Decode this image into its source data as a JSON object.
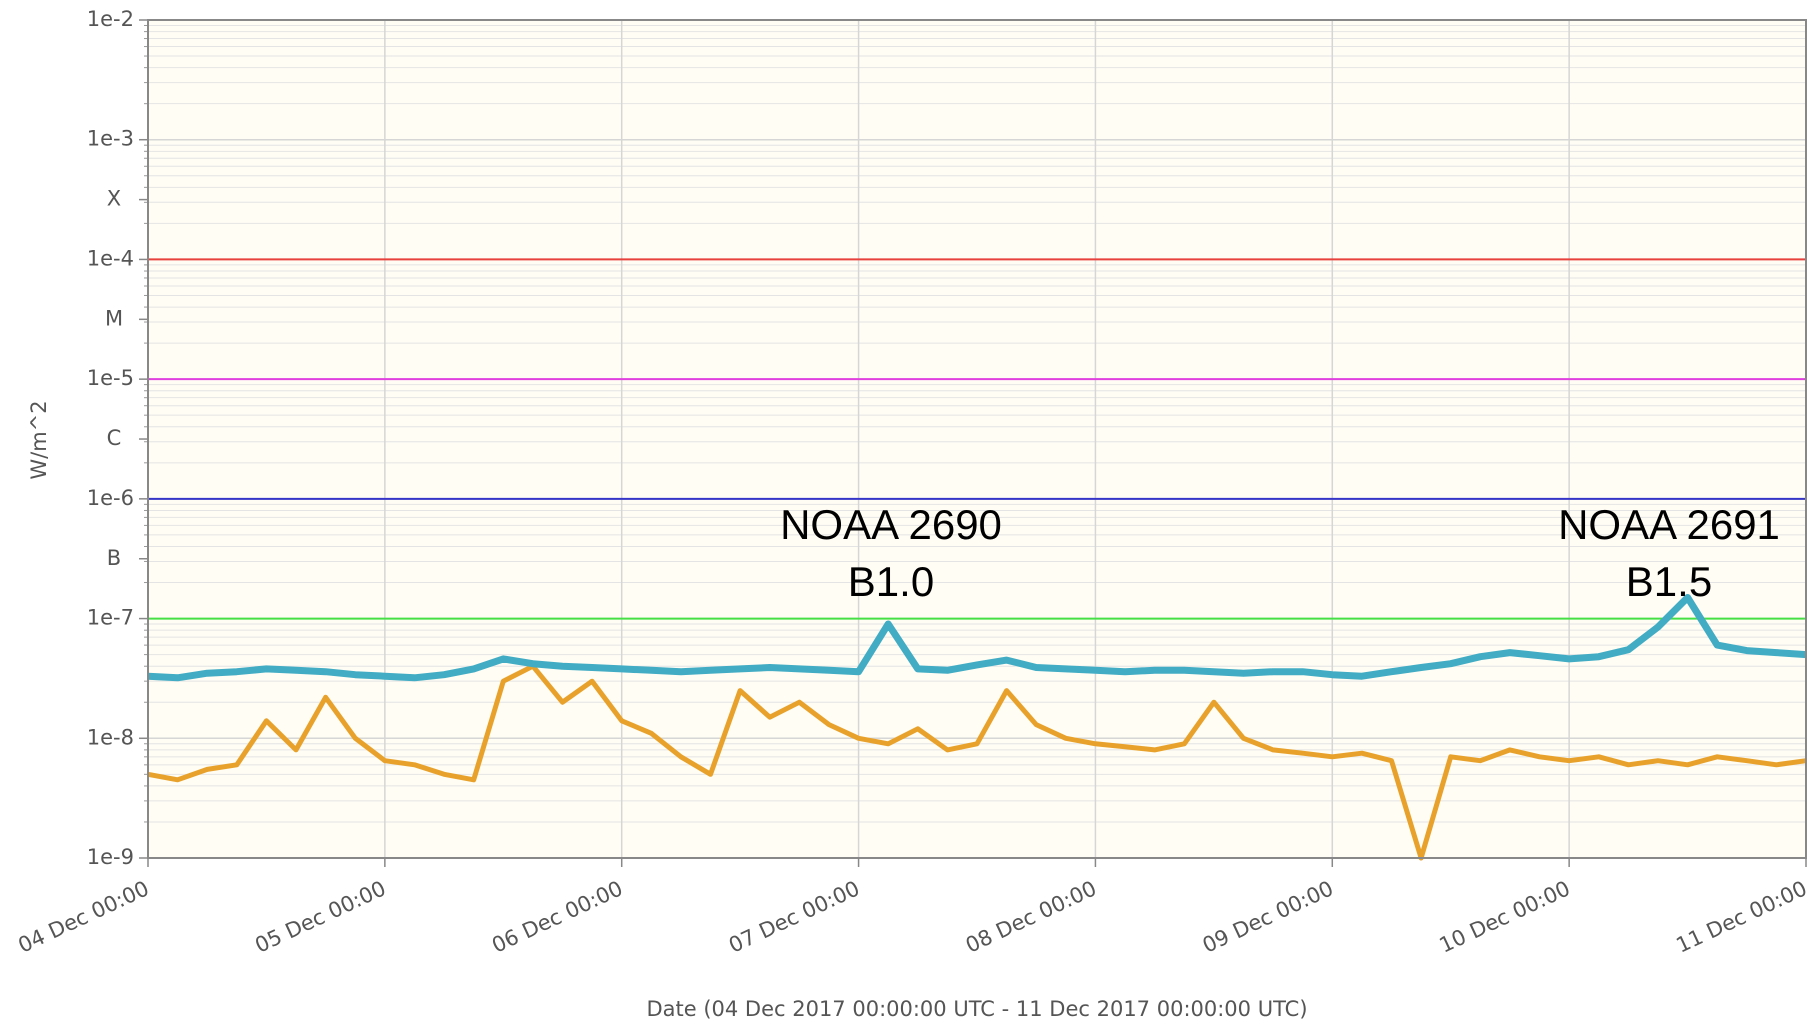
{
  "chart_data": {
    "type": "line",
    "y_label": "W/m^2",
    "x_label": "Date (04 Dec 2017 00:00:00 UTC - 11 Dec 2017 00:00:00 UTC)",
    "log_y": true,
    "grid": true,
    "ylim": [
      1e-09,
      0.01
    ],
    "yticks": [
      {
        "value": 1e-09,
        "label": "1e-9"
      },
      {
        "value": 1e-08,
        "label": "1e-8"
      },
      {
        "value": 1e-07,
        "label": "1e-7"
      },
      {
        "value": 1e-06,
        "label": "1e-6"
      },
      {
        "value": 1e-05,
        "label": "1e-5"
      },
      {
        "value": 0.0001,
        "label": "1e-4"
      },
      {
        "value": 0.001,
        "label": "1e-3"
      },
      {
        "value": 0.01,
        "label": "1e-2"
      }
    ],
    "class_ticks": [
      {
        "value": 3.16e-07,
        "label": "B"
      },
      {
        "value": 3.16e-06,
        "label": "C"
      },
      {
        "value": 3.16e-05,
        "label": "M"
      },
      {
        "value": 0.000316,
        "label": "X"
      }
    ],
    "thresholds": [
      {
        "value": 0.0001,
        "color": "#e8413c"
      },
      {
        "value": 1e-05,
        "color": "#e040e0"
      },
      {
        "value": 1e-06,
        "color": "#3535c8"
      },
      {
        "value": 1e-07,
        "color": "#44e044"
      }
    ],
    "xlim": [
      "2017-12-04 00:00",
      "2017-12-11 00:00"
    ],
    "xticks": [
      {
        "value": "2017-12-04 00:00",
        "label": "04 Dec 00:00"
      },
      {
        "value": "2017-12-05 00:00",
        "label": "05 Dec 00:00"
      },
      {
        "value": "2017-12-06 00:00",
        "label": "06 Dec 00:00"
      },
      {
        "value": "2017-12-07 00:00",
        "label": "07 Dec 00:00"
      },
      {
        "value": "2017-12-08 00:00",
        "label": "08 Dec 00:00"
      },
      {
        "value": "2017-12-09 00:00",
        "label": "09 Dec 00:00"
      },
      {
        "value": "2017-12-10 00:00",
        "label": "10 Dec 00:00"
      },
      {
        "value": "2017-12-11 00:00",
        "label": "11 Dec 00:00"
      }
    ],
    "x": [
      "2017-12-04 00:00",
      "2017-12-04 03:00",
      "2017-12-04 06:00",
      "2017-12-04 09:00",
      "2017-12-04 12:00",
      "2017-12-04 15:00",
      "2017-12-04 18:00",
      "2017-12-04 21:00",
      "2017-12-05 00:00",
      "2017-12-05 03:00",
      "2017-12-05 06:00",
      "2017-12-05 09:00",
      "2017-12-05 12:00",
      "2017-12-05 15:00",
      "2017-12-05 18:00",
      "2017-12-05 21:00",
      "2017-12-06 00:00",
      "2017-12-06 03:00",
      "2017-12-06 06:00",
      "2017-12-06 09:00",
      "2017-12-06 12:00",
      "2017-12-06 15:00",
      "2017-12-06 18:00",
      "2017-12-06 21:00",
      "2017-12-07 00:00",
      "2017-12-07 03:00",
      "2017-12-07 06:00",
      "2017-12-07 09:00",
      "2017-12-07 12:00",
      "2017-12-07 15:00",
      "2017-12-07 18:00",
      "2017-12-07 21:00",
      "2017-12-08 00:00",
      "2017-12-08 03:00",
      "2017-12-08 06:00",
      "2017-12-08 09:00",
      "2017-12-08 12:00",
      "2017-12-08 15:00",
      "2017-12-08 18:00",
      "2017-12-08 21:00",
      "2017-12-09 00:00",
      "2017-12-09 03:00",
      "2017-12-09 06:00",
      "2017-12-09 09:00",
      "2017-12-09 12:00",
      "2017-12-09 15:00",
      "2017-12-09 18:00",
      "2017-12-09 21:00",
      "2017-12-10 00:00",
      "2017-12-10 03:00",
      "2017-12-10 06:00",
      "2017-12-10 09:00",
      "2017-12-10 12:00",
      "2017-12-10 15:00",
      "2017-12-10 18:00",
      "2017-12-10 21:00",
      "2017-12-11 00:00"
    ],
    "series": [
      {
        "color": "#41acc4",
        "values": [
          3.3e-08,
          3.2e-08,
          3.5e-08,
          3.6e-08,
          3.8e-08,
          3.7e-08,
          3.6e-08,
          3.4e-08,
          3.3e-08,
          3.2e-08,
          3.4e-08,
          3.8e-08,
          4.6e-08,
          4.2e-08,
          4e-08,
          3.9e-08,
          3.8e-08,
          3.7e-08,
          3.6e-08,
          3.7e-08,
          3.8e-08,
          3.9e-08,
          3.8e-08,
          3.7e-08,
          3.6e-08,
          9e-08,
          3.8e-08,
          3.7e-08,
          4.1e-08,
          4.5e-08,
          3.9e-08,
          3.8e-08,
          3.7e-08,
          3.6e-08,
          3.7e-08,
          3.7e-08,
          3.6e-08,
          3.5e-08,
          3.6e-08,
          3.6e-08,
          3.4e-08,
          3.3e-08,
          3.6e-08,
          3.9e-08,
          4.2e-08,
          4.8e-08,
          5.2e-08,
          4.9e-08,
          4.6e-08,
          4.8e-08,
          5.5e-08,
          8.5e-08,
          1.5e-07,
          6e-08,
          5.4e-08,
          5.2e-08,
          5e-08
        ]
      },
      {
        "color": "#e8a22c",
        "values": [
          5e-09,
          4.5e-09,
          5.5e-09,
          6e-09,
          1.4e-08,
          8e-09,
          2.2e-08,
          1e-08,
          6.5e-09,
          6e-09,
          5e-09,
          4.5e-09,
          3e-08,
          4e-08,
          2e-08,
          3e-08,
          1.4e-08,
          1.1e-08,
          7e-09,
          5e-09,
          2.5e-08,
          1.5e-08,
          2e-08,
          1.3e-08,
          1e-08,
          9e-09,
          1.2e-08,
          8e-09,
          9e-09,
          2.5e-08,
          1.3e-08,
          1e-08,
          9e-09,
          8.5e-09,
          8e-09,
          9e-09,
          2e-08,
          1e-08,
          8e-09,
          7.5e-09,
          7e-09,
          7.5e-09,
          6.5e-09,
          1e-09,
          7e-09,
          6.5e-09,
          8e-09,
          7e-09,
          6.5e-09,
          7e-09,
          6e-09,
          6.5e-09,
          6e-09,
          7e-09,
          6.5e-09,
          6e-09,
          6.5e-09
        ]
      }
    ],
    "annotations": [
      {
        "lines": [
          "NOAA 2690",
          "B1.0"
        ]
      },
      {
        "lines": [
          "NOAA 2691",
          "B1.5"
        ]
      }
    ]
  }
}
